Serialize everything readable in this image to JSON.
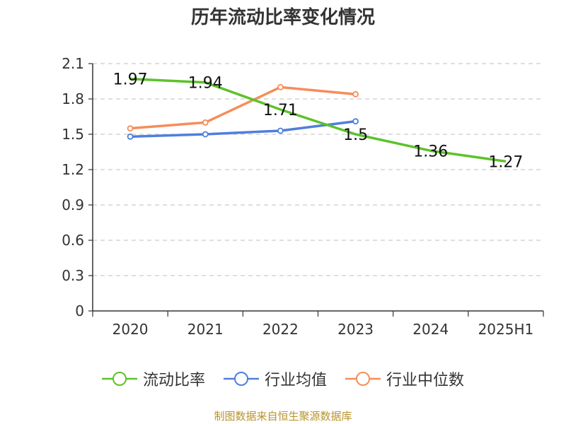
{
  "chart_data": {
    "type": "line",
    "title": "历年流动比率变化情况",
    "categories": [
      "2020",
      "2021",
      "2022",
      "2023",
      "2024",
      "2025H1"
    ],
    "ylim": [
      0,
      2.1
    ],
    "yticks": [
      "0",
      "0.3",
      "0.6",
      "0.9",
      "1.2",
      "1.5",
      "1.8",
      "2.1"
    ],
    "grid": true,
    "legend_position": "bottom",
    "series": [
      {
        "name": "流动比率",
        "color": "#5dc22a",
        "values": [
          1.97,
          1.94,
          1.71,
          1.5,
          1.36,
          1.27
        ],
        "labels": [
          "1.97",
          "1.94",
          "1.71",
          "1.5",
          "1.36",
          "1.27"
        ]
      },
      {
        "name": "行业均值",
        "color": "#4f7fdc",
        "values": [
          1.48,
          1.5,
          1.53,
          1.61,
          null,
          null
        ]
      },
      {
        "name": "行业中位数",
        "color": "#f58d5a",
        "values": [
          1.55,
          1.6,
          1.9,
          1.84,
          null,
          null
        ]
      }
    ]
  },
  "footer": {
    "source": "制图数据来自恒生聚源数据库"
  }
}
